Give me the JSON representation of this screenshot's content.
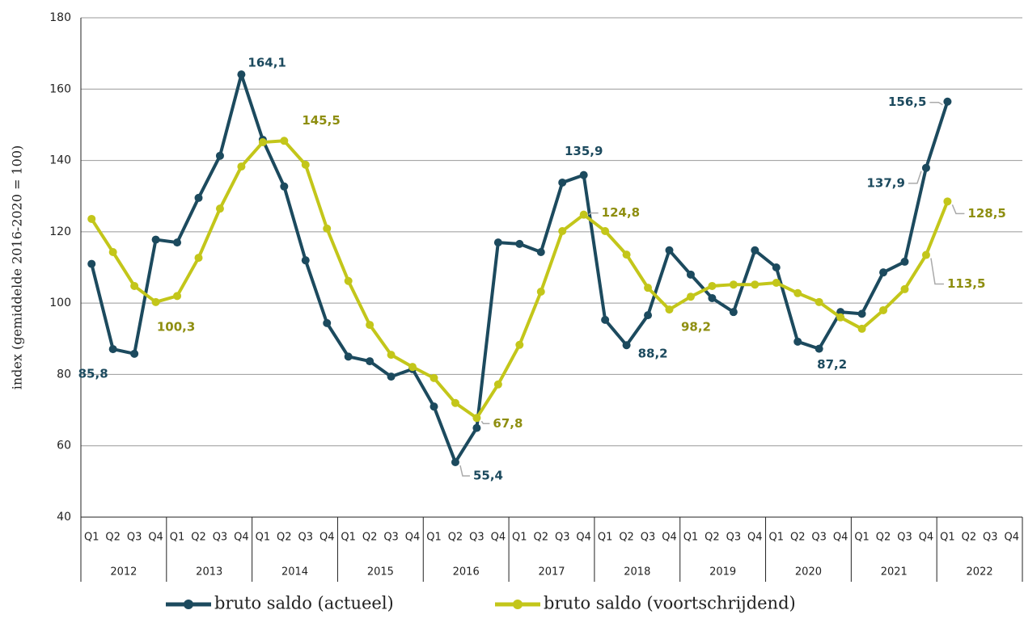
{
  "chart_data": {
    "type": "line",
    "y_label": "index (gemiddelde 2016-2020 = 100)",
    "categories": [
      "Q1",
      "Q2",
      "Q3",
      "Q4",
      "Q1",
      "Q2",
      "Q3",
      "Q4",
      "Q1",
      "Q2",
      "Q3",
      "Q4",
      "Q1",
      "Q2",
      "Q3",
      "Q4",
      "Q1",
      "Q2",
      "Q3",
      "Q4",
      "Q1",
      "Q2",
      "Q3",
      "Q4",
      "Q1",
      "Q2",
      "Q3",
      "Q4",
      "Q1",
      "Q2",
      "Q3",
      "Q4",
      "Q1",
      "Q2",
      "Q3",
      "Q4",
      "Q1",
      "Q2",
      "Q3",
      "Q4",
      "Q1",
      "Q2",
      "Q3",
      "Q4"
    ],
    "groups": [
      "2012",
      "2013",
      "2014",
      "2015",
      "2016",
      "2017",
      "2018",
      "2019",
      "2020",
      "2021",
      "2022"
    ],
    "ylim": [
      40,
      180
    ],
    "yticks": [
      40,
      60,
      80,
      100,
      120,
      140,
      160,
      180
    ],
    "grid": true,
    "series": [
      {
        "name": "bruto saldo (actueel)",
        "color": "#1c4a5e",
        "label_color": "#1c4a5e",
        "values": [
          111,
          87.1,
          85.8,
          117.8,
          117,
          129.5,
          141.3,
          164.1,
          145.8,
          132.7,
          112,
          94.4,
          85,
          83.7,
          79.4,
          81.5,
          71,
          55.4,
          65,
          117,
          116.6,
          114.3,
          133.8,
          135.9,
          95.3,
          88.2,
          96.6,
          114.8,
          108,
          101.4,
          97.5,
          114.8,
          110,
          89.2,
          87.2,
          97.5,
          97,
          108.6,
          111.6,
          137.9,
          156.5,
          null,
          null,
          null
        ],
        "value_labels": [
          null,
          null,
          "85,8",
          null,
          null,
          null,
          null,
          "164,1",
          null,
          null,
          null,
          null,
          null,
          null,
          null,
          null,
          null,
          "55,4",
          null,
          null,
          null,
          null,
          null,
          "135,9",
          null,
          "88,2",
          null,
          null,
          null,
          null,
          null,
          null,
          null,
          null,
          "87,2",
          null,
          null,
          null,
          null,
          "137,9",
          "156,5",
          null,
          null,
          null
        ]
      },
      {
        "name": "bruto saldo (voortschrijdend)",
        "color": "#c3c61a",
        "label_color": "#8e8e10",
        "values": [
          123.6,
          114.3,
          104.8,
          100.3,
          102,
          112.7,
          126.5,
          138.3,
          145.1,
          145.5,
          138.8,
          120.9,
          106.2,
          93.9,
          85.5,
          82.1,
          79,
          72,
          67.8,
          77.2,
          88.3,
          103.2,
          120.2,
          124.8,
          120.2,
          113.6,
          104.3,
          98.2,
          101.8,
          104.8,
          105.2,
          105.2,
          105.7,
          102.8,
          100.3,
          96,
          92.8,
          98,
          103.9,
          113.5,
          128.5,
          null,
          null,
          null
        ],
        "value_labels": [
          null,
          null,
          null,
          "100,3",
          null,
          null,
          null,
          null,
          null,
          "145,5",
          null,
          null,
          null,
          null,
          null,
          null,
          null,
          null,
          "67,8",
          null,
          null,
          null,
          null,
          "124,8",
          null,
          null,
          null,
          "98,2",
          null,
          null,
          null,
          null,
          null,
          null,
          null,
          null,
          null,
          null,
          null,
          "113,5",
          "128,5",
          null,
          null,
          null
        ]
      }
    ]
  }
}
